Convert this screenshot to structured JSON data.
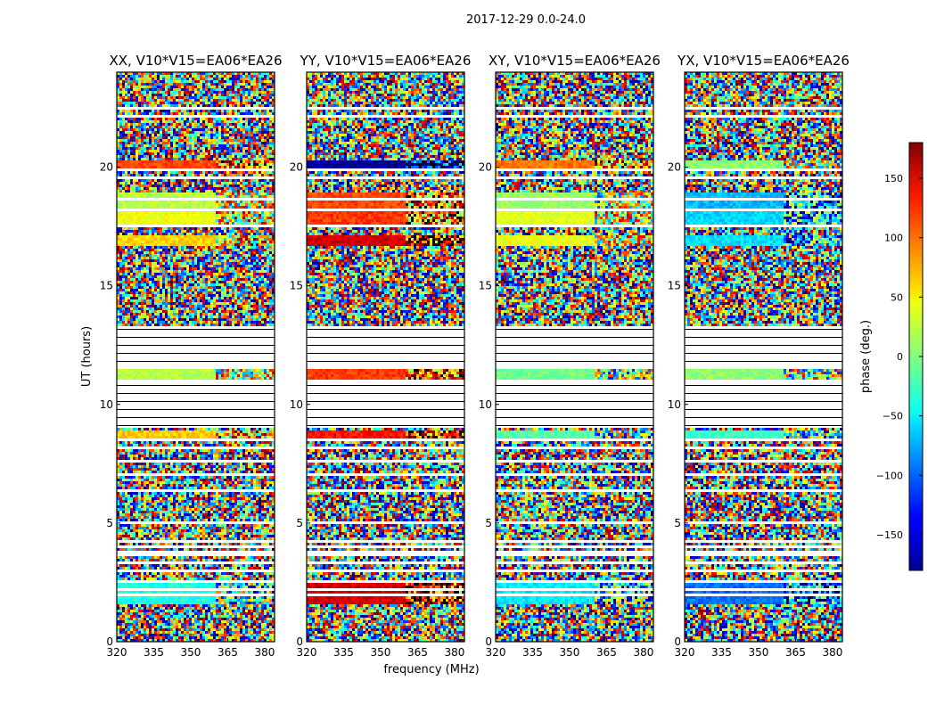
{
  "figure": {
    "suptitle": "2017-12-29 0.0-24.0",
    "xlabel": "frequency (MHz)",
    "ylabel": "UT (hours)",
    "colorbar_label": "phase (deg.)"
  },
  "chart_data": {
    "type": "heatmap",
    "panel_titles": [
      "XX, V10*V15=EA06*EA26",
      "YY, V10*V15=EA06*EA26",
      "XY, V10*V15=EA06*EA26",
      "YX, V10*V15=EA06*EA26"
    ],
    "x_ticks": [
      320,
      335,
      350,
      365,
      380
    ],
    "xlim": [
      320,
      384
    ],
    "y_ticks": [
      0,
      5,
      10,
      15,
      20
    ],
    "ylim": [
      0,
      24
    ],
    "colorbar_ticks": [
      150,
      100,
      50,
      0,
      -50,
      -100,
      -150
    ],
    "colorbar_range": [
      -180,
      180
    ],
    "colormap": "jet",
    "flagged_color": "#ffffff",
    "tick_label_format": {
      "minus_sign": "−"
    },
    "flag_gap_hours": [
      [
        1.45,
        1.52
      ],
      [
        1.68,
        1.74
      ],
      [
        1.92,
        1.98
      ],
      [
        2.18,
        2.24
      ],
      [
        2.45,
        2.55
      ],
      [
        2.95,
        3.0
      ],
      [
        3.3,
        3.35
      ],
      [
        3.58,
        3.8
      ],
      [
        4.0,
        4.05
      ],
      [
        4.18,
        4.3
      ],
      [
        5.0,
        5.05
      ],
      [
        5.7,
        5.75
      ],
      [
        6.35,
        6.4
      ],
      [
        7.0,
        7.05
      ],
      [
        7.6,
        7.65
      ],
      [
        8.15,
        8.25
      ],
      [
        8.45,
        8.55
      ],
      [
        13.0,
        13.05
      ],
      [
        14.4,
        14.45
      ],
      [
        15.5,
        15.6
      ],
      [
        16.1,
        16.15
      ],
      [
        16.55,
        16.6
      ],
      [
        17.2,
        17.25
      ],
      [
        17.5,
        17.55
      ],
      [
        18.1,
        18.2
      ],
      [
        18.6,
        18.7
      ],
      [
        19.1,
        19.15
      ],
      [
        19.5,
        19.6
      ],
      [
        19.85,
        19.9
      ],
      [
        20.95,
        21.0
      ],
      [
        22.1,
        22.2
      ],
      [
        22.45,
        22.55
      ]
    ],
    "flagged_band_hours": [
      9.0,
      11.05,
      11.45,
      13.35
    ],
    "coherent_bands": [
      {
        "h0": 1.6,
        "h1": 2.45,
        "phase": [
          -35,
          150,
          -50,
          -95
        ]
      },
      {
        "h0": 3.93,
        "h1": 4.0,
        "phase": [
          50,
          155,
          -90,
          -140
        ]
      },
      {
        "h0": 8.55,
        "h1": 8.85,
        "phase": [
          65,
          130,
          -15,
          -25
        ]
      },
      {
        "h0": 11.05,
        "h1": 11.45,
        "phase": [
          20,
          115,
          -5,
          5
        ]
      },
      {
        "h0": 16.7,
        "h1": 17.1,
        "phase": [
          60,
          150,
          40,
          -55
        ]
      },
      {
        "h0": 17.6,
        "h1": 18.1,
        "phase": [
          40,
          115,
          35,
          -60
        ]
      },
      {
        "h0": 18.3,
        "h1": 18.9,
        "phase": [
          20,
          110,
          10,
          -70
        ]
      },
      {
        "h0": 20.0,
        "h1": 20.3,
        "phase": [
          110,
          -170,
          95,
          5
        ]
      }
    ],
    "noise_value_range": [
      -180,
      180
    ]
  }
}
